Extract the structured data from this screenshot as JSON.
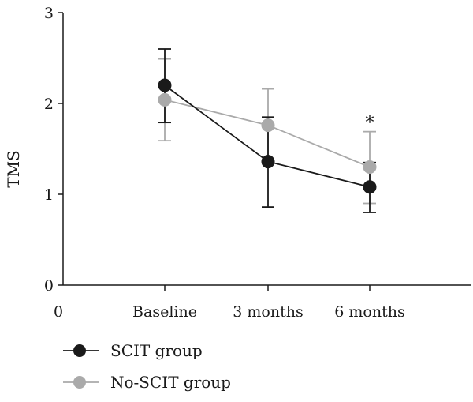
{
  "chart_data": {
    "type": "line",
    "ylabel": "TMS",
    "xlabel": "",
    "x_origin_label": "0",
    "categories": [
      "Baseline",
      "3 months",
      "6 months"
    ],
    "ylim": [
      0,
      3
    ],
    "yticks": [
      0,
      1,
      2,
      3
    ],
    "grid": false,
    "legend_position": "bottom-left",
    "series": [
      {
        "name": "SCIT group",
        "color": "#1a1a1a",
        "values": [
          2.2,
          1.36,
          1.08
        ],
        "error_upper": [
          2.6,
          1.85,
          1.35
        ],
        "error_lower": [
          1.79,
          0.86,
          0.8
        ]
      },
      {
        "name": "No-SCIT group",
        "color": "#aaaaaa",
        "values": [
          2.04,
          1.76,
          1.3
        ],
        "error_upper": [
          2.49,
          2.16,
          1.69
        ],
        "error_lower": [
          1.59,
          1.36,
          0.9
        ]
      }
    ],
    "annotations": [
      {
        "category": "6 months",
        "value": 1.69,
        "text": "*"
      }
    ]
  }
}
